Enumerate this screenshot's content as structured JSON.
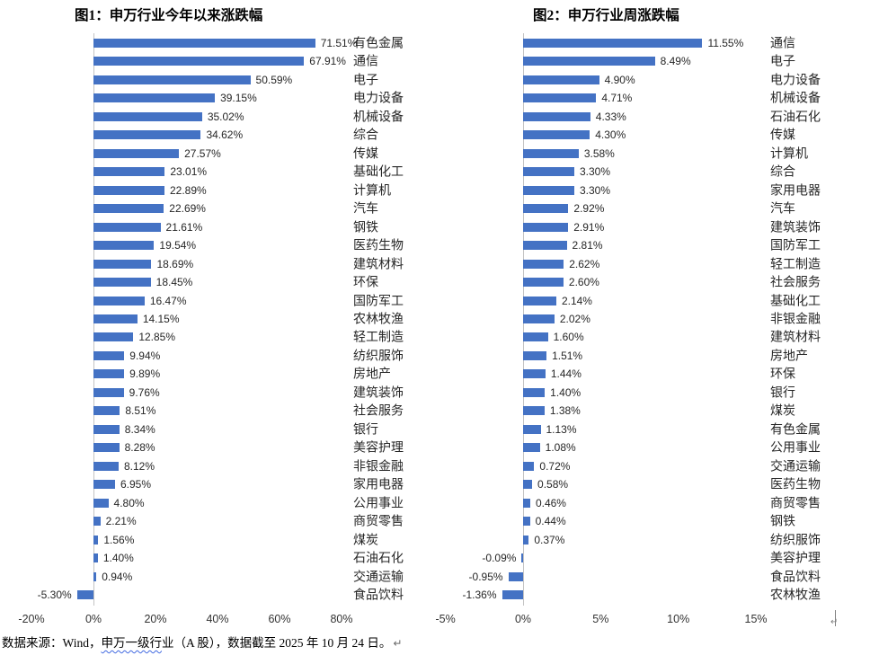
{
  "page": {
    "background_color": "#ffffff",
    "accent_color": "#4472C4"
  },
  "chart_data": [
    {
      "type": "bar",
      "orientation": "horizontal",
      "title": "图1：申万行业今年以来涨跌幅",
      "bar_color": "#4472C4",
      "value_format": "0.00%",
      "value_labels": "outside-end",
      "category_side": "right",
      "grid": false,
      "legend": "none",
      "xlim": [
        -20,
        80
      ],
      "categories": [
        "有色金属",
        "通信",
        "电子",
        "电力设备",
        "机械设备",
        "综合",
        "传媒",
        "基础化工",
        "计算机",
        "汽车",
        "钢铁",
        "医药生物",
        "建筑材料",
        "环保",
        "国防军工",
        "农林牧渔",
        "轻工制造",
        "纺织服饰",
        "房地产",
        "建筑装饰",
        "社会服务",
        "银行",
        "美容护理",
        "非银金融",
        "家用电器",
        "公用事业",
        "商贸零售",
        "煤炭",
        "石油石化",
        "交通运输",
        "食品饮料"
      ],
      "values": [
        71.51,
        67.91,
        50.59,
        39.15,
        35.02,
        34.62,
        27.57,
        23.01,
        22.89,
        22.69,
        21.61,
        19.54,
        18.69,
        18.45,
        16.47,
        14.15,
        12.85,
        9.94,
        9.89,
        9.76,
        8.51,
        8.34,
        8.28,
        8.12,
        6.95,
        4.8,
        2.21,
        1.56,
        1.4,
        0.94,
        -5.3
      ],
      "ticks": [
        {
          "label": "-20%",
          "value": -20
        },
        {
          "label": "0%",
          "value": 0
        },
        {
          "label": "20%",
          "value": 20
        },
        {
          "label": "40%",
          "value": 40
        },
        {
          "label": "60%",
          "value": 60
        },
        {
          "label": "80%",
          "value": 80
        }
      ]
    },
    {
      "type": "bar",
      "orientation": "horizontal",
      "title": "图2：申万行业周涨跌幅",
      "bar_color": "#4472C4",
      "value_format": "0.00%",
      "value_labels": "outside-end",
      "category_side": "right",
      "grid": false,
      "legend": "none",
      "xlim": [
        -5,
        15
      ],
      "categories": [
        "通信",
        "电子",
        "电力设备",
        "机械设备",
        "石油石化",
        "传媒",
        "计算机",
        "综合",
        "家用电器",
        "汽车",
        "建筑装饰",
        "国防军工",
        "轻工制造",
        "社会服务",
        "基础化工",
        "非银金融",
        "建筑材料",
        "房地产",
        "环保",
        "银行",
        "煤炭",
        "有色金属",
        "公用事业",
        "交通运输",
        "医药生物",
        "商贸零售",
        "钢铁",
        "纺织服饰",
        "美容护理",
        "食品饮料",
        "农林牧渔"
      ],
      "values": [
        11.55,
        8.49,
        4.9,
        4.71,
        4.33,
        4.3,
        3.58,
        3.3,
        3.3,
        2.92,
        2.91,
        2.81,
        2.62,
        2.6,
        2.14,
        2.02,
        1.6,
        1.51,
        1.44,
        1.4,
        1.38,
        1.13,
        1.08,
        0.72,
        0.58,
        0.46,
        0.44,
        0.37,
        -0.09,
        -0.95,
        -1.36
      ],
      "ticks": [
        {
          "label": "-5%",
          "value": -5
        },
        {
          "label": "0%",
          "value": 0
        },
        {
          "label": "5%",
          "value": 5
        },
        {
          "label": "10%",
          "value": 10
        },
        {
          "label": "15%",
          "value": 15
        }
      ]
    }
  ],
  "footer": {
    "prefix": "数据来源：Wind，",
    "underlined": "申万一级行",
    "suffix": "业（A 股），数据截至 2025 年 10 月 24 日。",
    "paragraph_mark": "↵"
  },
  "icons": {
    "cursor_return_mark": "↵"
  }
}
